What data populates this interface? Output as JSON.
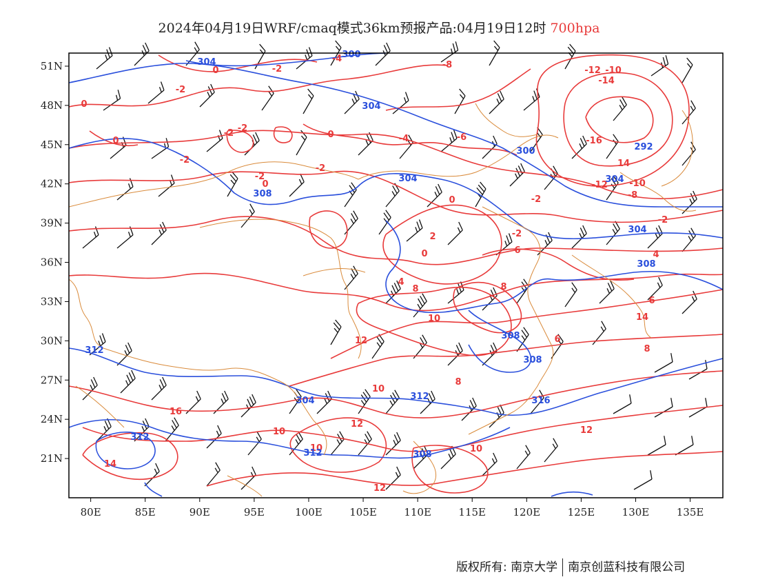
{
  "title": {
    "main": "2024年04月19日WRF/cmaq模式36km预报产品:04月19日12时",
    "level": "700hpa"
  },
  "axes": {
    "lon_labels": [
      "80E",
      "85E",
      "90E",
      "95E",
      "100E",
      "105E",
      "110E",
      "115E",
      "120E",
      "125E",
      "130E",
      "135E"
    ],
    "lon_values": [
      80,
      85,
      90,
      95,
      100,
      105,
      110,
      115,
      120,
      125,
      130,
      135
    ],
    "lat_labels": [
      "21N",
      "24N",
      "27N",
      "30N",
      "33N",
      "36N",
      "39N",
      "42N",
      "45N",
      "48N",
      "51N"
    ],
    "lat_values": [
      21,
      24,
      27,
      30,
      33,
      36,
      39,
      42,
      45,
      48,
      51
    ],
    "lon_range": [
      78,
      138
    ],
    "lat_range": [
      18,
      52
    ]
  },
  "colors": {
    "temperature": "#e83a3a",
    "geopotential": "#2a4fdc",
    "border": "#d98a3a",
    "barb": "#111111"
  },
  "temperature_labels": [
    "-12",
    "-10",
    "-14",
    "-16",
    "14",
    "-12",
    "-10",
    "-8",
    "-2",
    "-4",
    "-8",
    "-6",
    "-2",
    "0",
    "-2",
    "0",
    "-2",
    "-2",
    "0",
    "-2",
    "-2",
    "0",
    "-2",
    "0",
    "-4",
    "-2",
    "0",
    "2",
    "0",
    "-2",
    "4",
    "8",
    "6",
    "8",
    "12",
    "10",
    "14",
    "16",
    "14",
    "10",
    "12",
    "10",
    "8",
    "10",
    "12",
    "6",
    "4",
    "6",
    "8",
    "10",
    "12"
  ],
  "height_labels": [
    "304",
    "300",
    "304",
    "300",
    "292",
    "304",
    "308",
    "304",
    "308",
    "308",
    "308",
    "304",
    "312",
    "316",
    "312",
    "312",
    "308",
    "312",
    "304"
  ],
  "footer": {
    "left": "版权所有: 南京大学",
    "right": "南京创蓝科技有限公司"
  }
}
